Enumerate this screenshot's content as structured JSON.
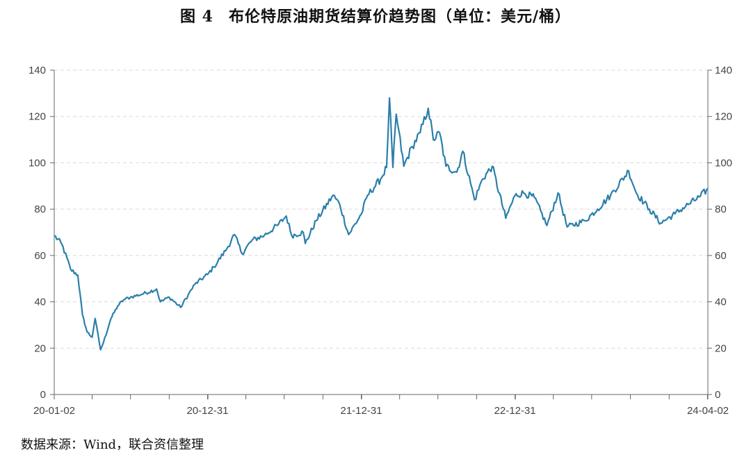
{
  "title": {
    "figure_no": "图 4",
    "text": "布伦特原油期货结算价趋势图（单位：美元/桶）"
  },
  "source": "数据来源：Wind，联合资信整理",
  "colors": {
    "line": "#2a7faa",
    "axis": "#666666",
    "grid": "#d9d9d9"
  },
  "chart_data": {
    "type": "line",
    "title": "布伦特原油期货结算价趋势图（单位：美元/桶）",
    "xlabel": "",
    "ylabel": "",
    "unit": "美元/桶",
    "grid": true,
    "dual_y_axis": true,
    "ylim": [
      0,
      140
    ],
    "yticks": [
      0,
      20,
      40,
      60,
      80,
      100,
      120,
      140
    ],
    "xlim": [
      "2020-01-02",
      "2024-04-02"
    ],
    "xtick_labels": [
      "20-01-02",
      "20-12-31",
      "21-12-31",
      "22-12-31",
      "24-04-02"
    ],
    "x": [
      "2020-01-02",
      "2020-01-20",
      "2020-02-10",
      "2020-02-27",
      "2020-03-09",
      "2020-03-20",
      "2020-04-01",
      "2020-04-08",
      "2020-04-21",
      "2020-04-28",
      "2020-05-15",
      "2020-06-01",
      "2020-06-15",
      "2020-07-01",
      "2020-08-01",
      "2020-09-01",
      "2020-09-10",
      "2020-10-01",
      "2020-10-28",
      "2020-11-15",
      "2020-12-01",
      "2020-12-31",
      "2021-01-15",
      "2021-02-15",
      "2021-03-05",
      "2021-03-23",
      "2021-04-15",
      "2021-05-15",
      "2021-06-15",
      "2021-07-06",
      "2021-07-19",
      "2021-08-15",
      "2021-08-20",
      "2021-09-15",
      "2021-10-25",
      "2021-11-10",
      "2021-12-01",
      "2021-12-31",
      "2022-01-15",
      "2022-02-15",
      "2022-03-01",
      "2022-03-08",
      "2022-03-16",
      "2022-03-24",
      "2022-04-11",
      "2022-05-01",
      "2022-05-20",
      "2022-06-08",
      "2022-06-20",
      "2022-07-05",
      "2022-07-20",
      "2022-08-15",
      "2022-08-29",
      "2022-09-26",
      "2022-10-15",
      "2022-11-07",
      "2022-12-09",
      "2022-12-31",
      "2023-01-20",
      "2023-02-15",
      "2023-03-17",
      "2023-04-12",
      "2023-05-04",
      "2023-06-15",
      "2023-07-15",
      "2023-08-15",
      "2023-09-27",
      "2023-10-15",
      "2023-11-15",
      "2023-12-12",
      "2024-01-15",
      "2024-02-15",
      "2024-03-15",
      "2024-04-02"
    ],
    "series": [
      {
        "values": [
          68.6,
          64.9,
          54,
          51.5,
          34.4,
          26.98,
          24.7,
          32.8,
          19.3,
          22.5,
          32.5,
          38.3,
          40.9,
          42,
          43.5,
          45.5,
          40,
          42,
          37.6,
          43,
          47.6,
          51.8,
          55,
          63,
          69,
          60.8,
          66.5,
          68.7,
          73,
          77,
          68.6,
          70,
          65.2,
          75,
          86,
          82,
          69,
          77.8,
          86,
          93,
          98,
          127.98,
          98,
          121,
          98.5,
          107,
          113,
          123.58,
          110,
          113,
          98.5,
          96,
          105,
          84,
          93,
          98.5,
          76.1,
          85.9,
          87,
          85,
          72.97,
          87,
          72.3,
          75,
          80,
          86,
          96.5,
          87,
          80,
          74,
          78,
          82,
          85.5,
          88.8
        ]
      }
    ]
  }
}
